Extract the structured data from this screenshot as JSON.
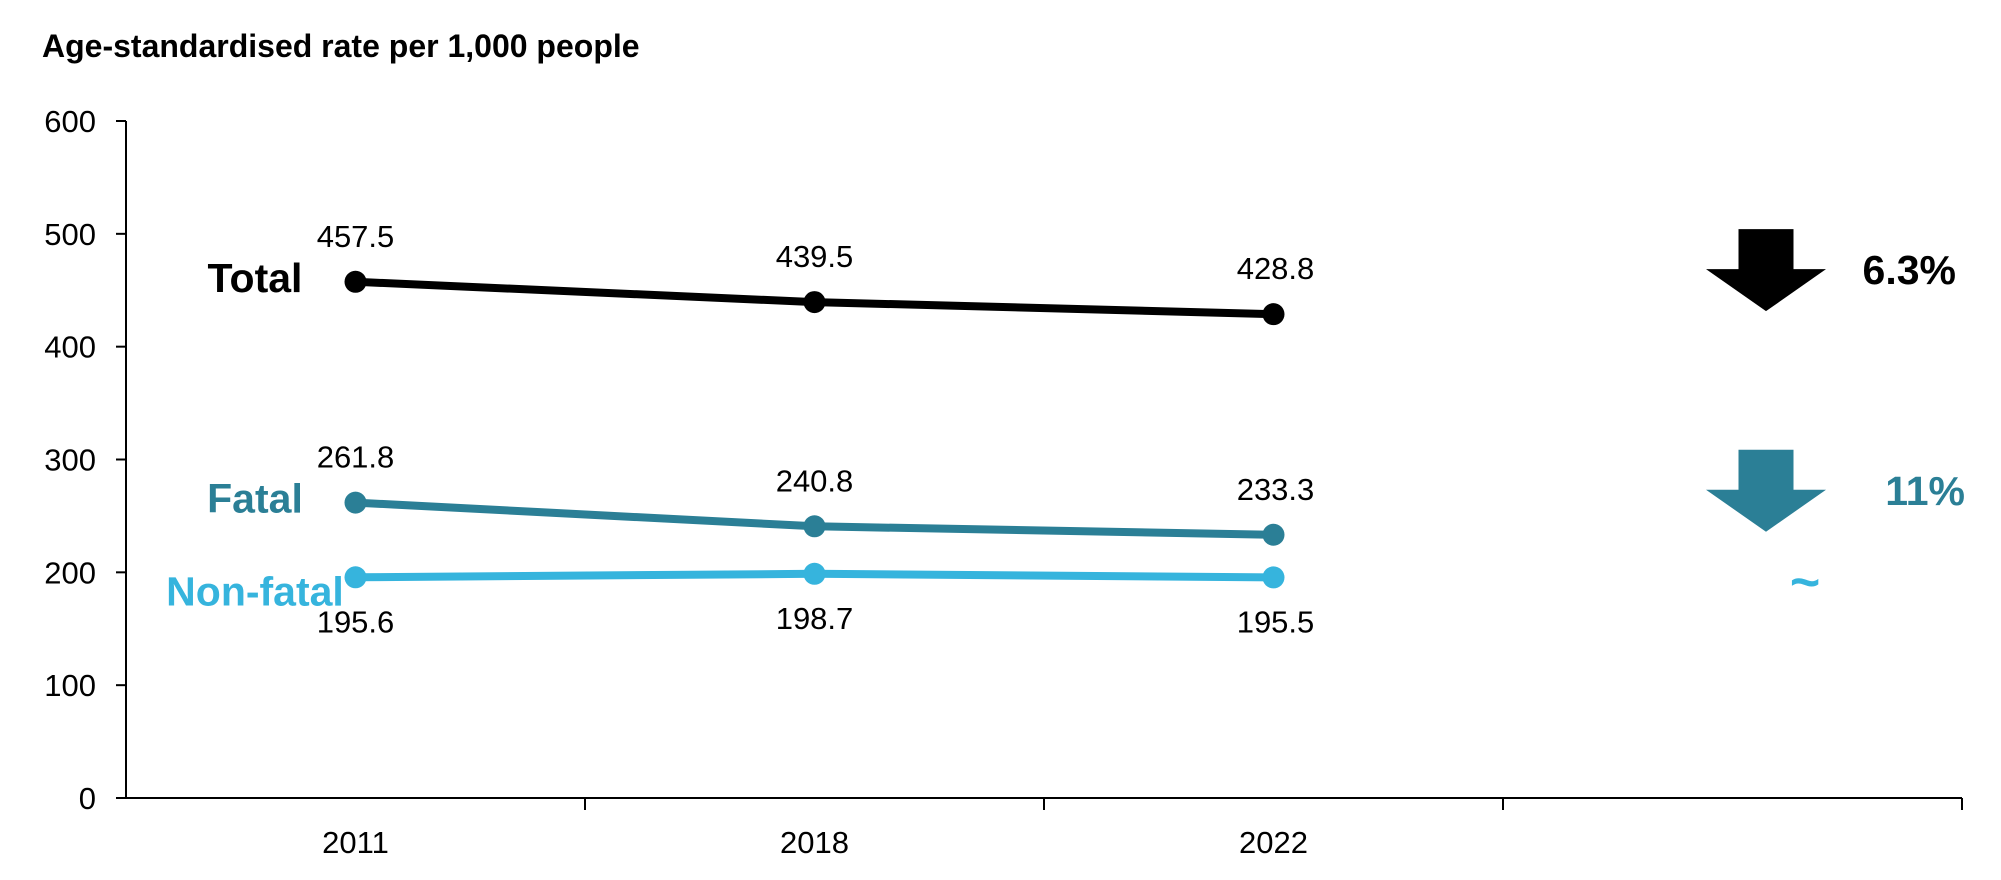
{
  "chart_data": {
    "type": "line",
    "ylabel": "Age-standardised rate per 1,000 people",
    "categories": [
      "2011",
      "2018",
      "2022"
    ],
    "ylim": [
      0,
      600
    ],
    "yticks": [
      "0",
      "100",
      "200",
      "300",
      "400",
      "500",
      "600"
    ],
    "grid": false,
    "series": [
      {
        "name": "Total",
        "values": [
          457.5,
          439.5,
          428.8
        ],
        "labels": [
          "457.5",
          "439.5",
          "428.8"
        ],
        "color": "#000000",
        "change": "6.3%",
        "trend": "down"
      },
      {
        "name": "Fatal",
        "values": [
          261.8,
          240.8,
          233.3
        ],
        "labels": [
          "261.8",
          "240.8",
          "233.3"
        ],
        "color": "#2b7f96",
        "change": "11%",
        "trend": "down"
      },
      {
        "name": "Non-fatal",
        "values": [
          195.6,
          198.7,
          195.5
        ],
        "labels": [
          "195.6",
          "198.7",
          "195.5"
        ],
        "color": "#36b4dd",
        "change": "~",
        "trend": "flat"
      }
    ]
  }
}
